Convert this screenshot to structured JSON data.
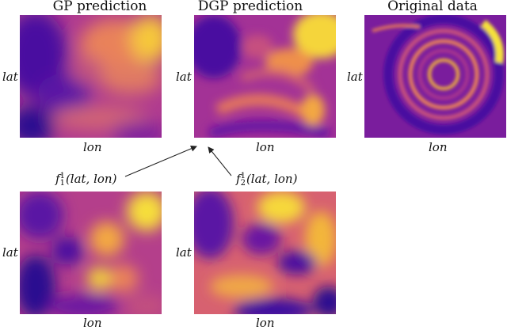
{
  "titles": {
    "gp": "GP prediction",
    "dgp": "DGP prediction",
    "orig": "Original data"
  },
  "axes": {
    "xlabel": "lon",
    "ylabel": "lat"
  },
  "latent": {
    "f1": {
      "name": "f",
      "sup": "1",
      "sub": "1",
      "args": "(lat, lon)"
    },
    "f2": {
      "name": "f",
      "sup": "1",
      "sub": "2",
      "args": "(lat, lon)"
    }
  },
  "colormap": [
    "#1f1487",
    "#5b0fa5",
    "#8a1fa0",
    "#b8398a",
    "#da5a6b",
    "#f08a4b",
    "#f8bd37",
    "#f5e93a"
  ]
}
